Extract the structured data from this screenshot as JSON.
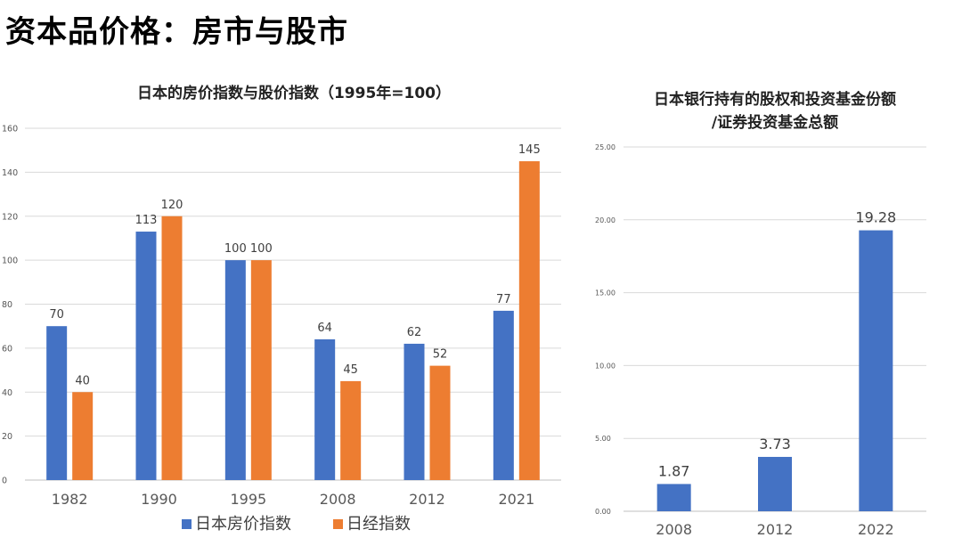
{
  "page": {
    "title": "资本品价格：房市与股市"
  },
  "colors": {
    "blue": "#4472C4",
    "orange": "#ED7D31",
    "grid": "#D9D9D9"
  },
  "chart_data": [
    {
      "type": "bar",
      "title": "日本的房价指数与股价指数（1995年=100）",
      "categories": [
        "1982",
        "1990",
        "1995",
        "2008",
        "2012",
        "2021"
      ],
      "series": [
        {
          "name": "日本房价指数",
          "color": "#4472C4",
          "values": [
            70,
            113,
            100,
            64,
            62,
            77
          ]
        },
        {
          "name": "日经指数",
          "color": "#ED7D31",
          "values": [
            40,
            120,
            100,
            45,
            52,
            145
          ]
        }
      ],
      "ylim": [
        0,
        160
      ],
      "yticks": [
        "0",
        "20",
        "40",
        "60",
        "80",
        "100",
        "120",
        "140",
        "160"
      ],
      "grid": true,
      "legend": "bottom"
    },
    {
      "type": "bar",
      "title_lines": [
        "日本银行持有的股权和投资基金份额",
        "/证券投资基金总额"
      ],
      "categories": [
        "2008",
        "2012",
        "2022"
      ],
      "series": [
        {
          "name": "",
          "color": "#4472C4",
          "values": [
            1.87,
            3.73,
            19.28
          ]
        }
      ],
      "data_labels": [
        "1.87",
        "3.73",
        "19.28"
      ],
      "ylim": [
        0,
        25
      ],
      "yticks": [
        "0.00",
        "5.00",
        "10.00",
        "15.00",
        "20.00",
        "25.00"
      ],
      "grid": true,
      "legend": "none"
    }
  ]
}
